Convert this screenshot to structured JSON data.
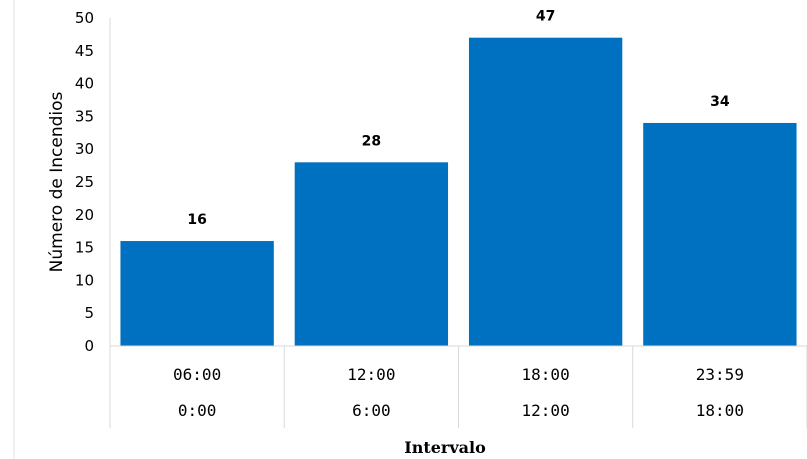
{
  "chart_data": {
    "type": "bar",
    "categories": [
      {
        "top": "06:00",
        "bottom": "0:00"
      },
      {
        "top": "12:00",
        "bottom": "6:00"
      },
      {
        "top": "18:00",
        "bottom": "12:00"
      },
      {
        "top": "23:59",
        "bottom": "18:00"
      }
    ],
    "values": [
      16,
      28,
      47,
      34
    ],
    "xlabel": "Intervalo",
    "ylabel": "Número de Incendios",
    "ylim": [
      0,
      50
    ],
    "yticks": [
      0,
      5,
      10,
      15,
      20,
      25,
      30,
      35,
      40,
      45,
      50
    ],
    "grid": false,
    "bar_color": "#0070C0",
    "data_labels": true
  }
}
